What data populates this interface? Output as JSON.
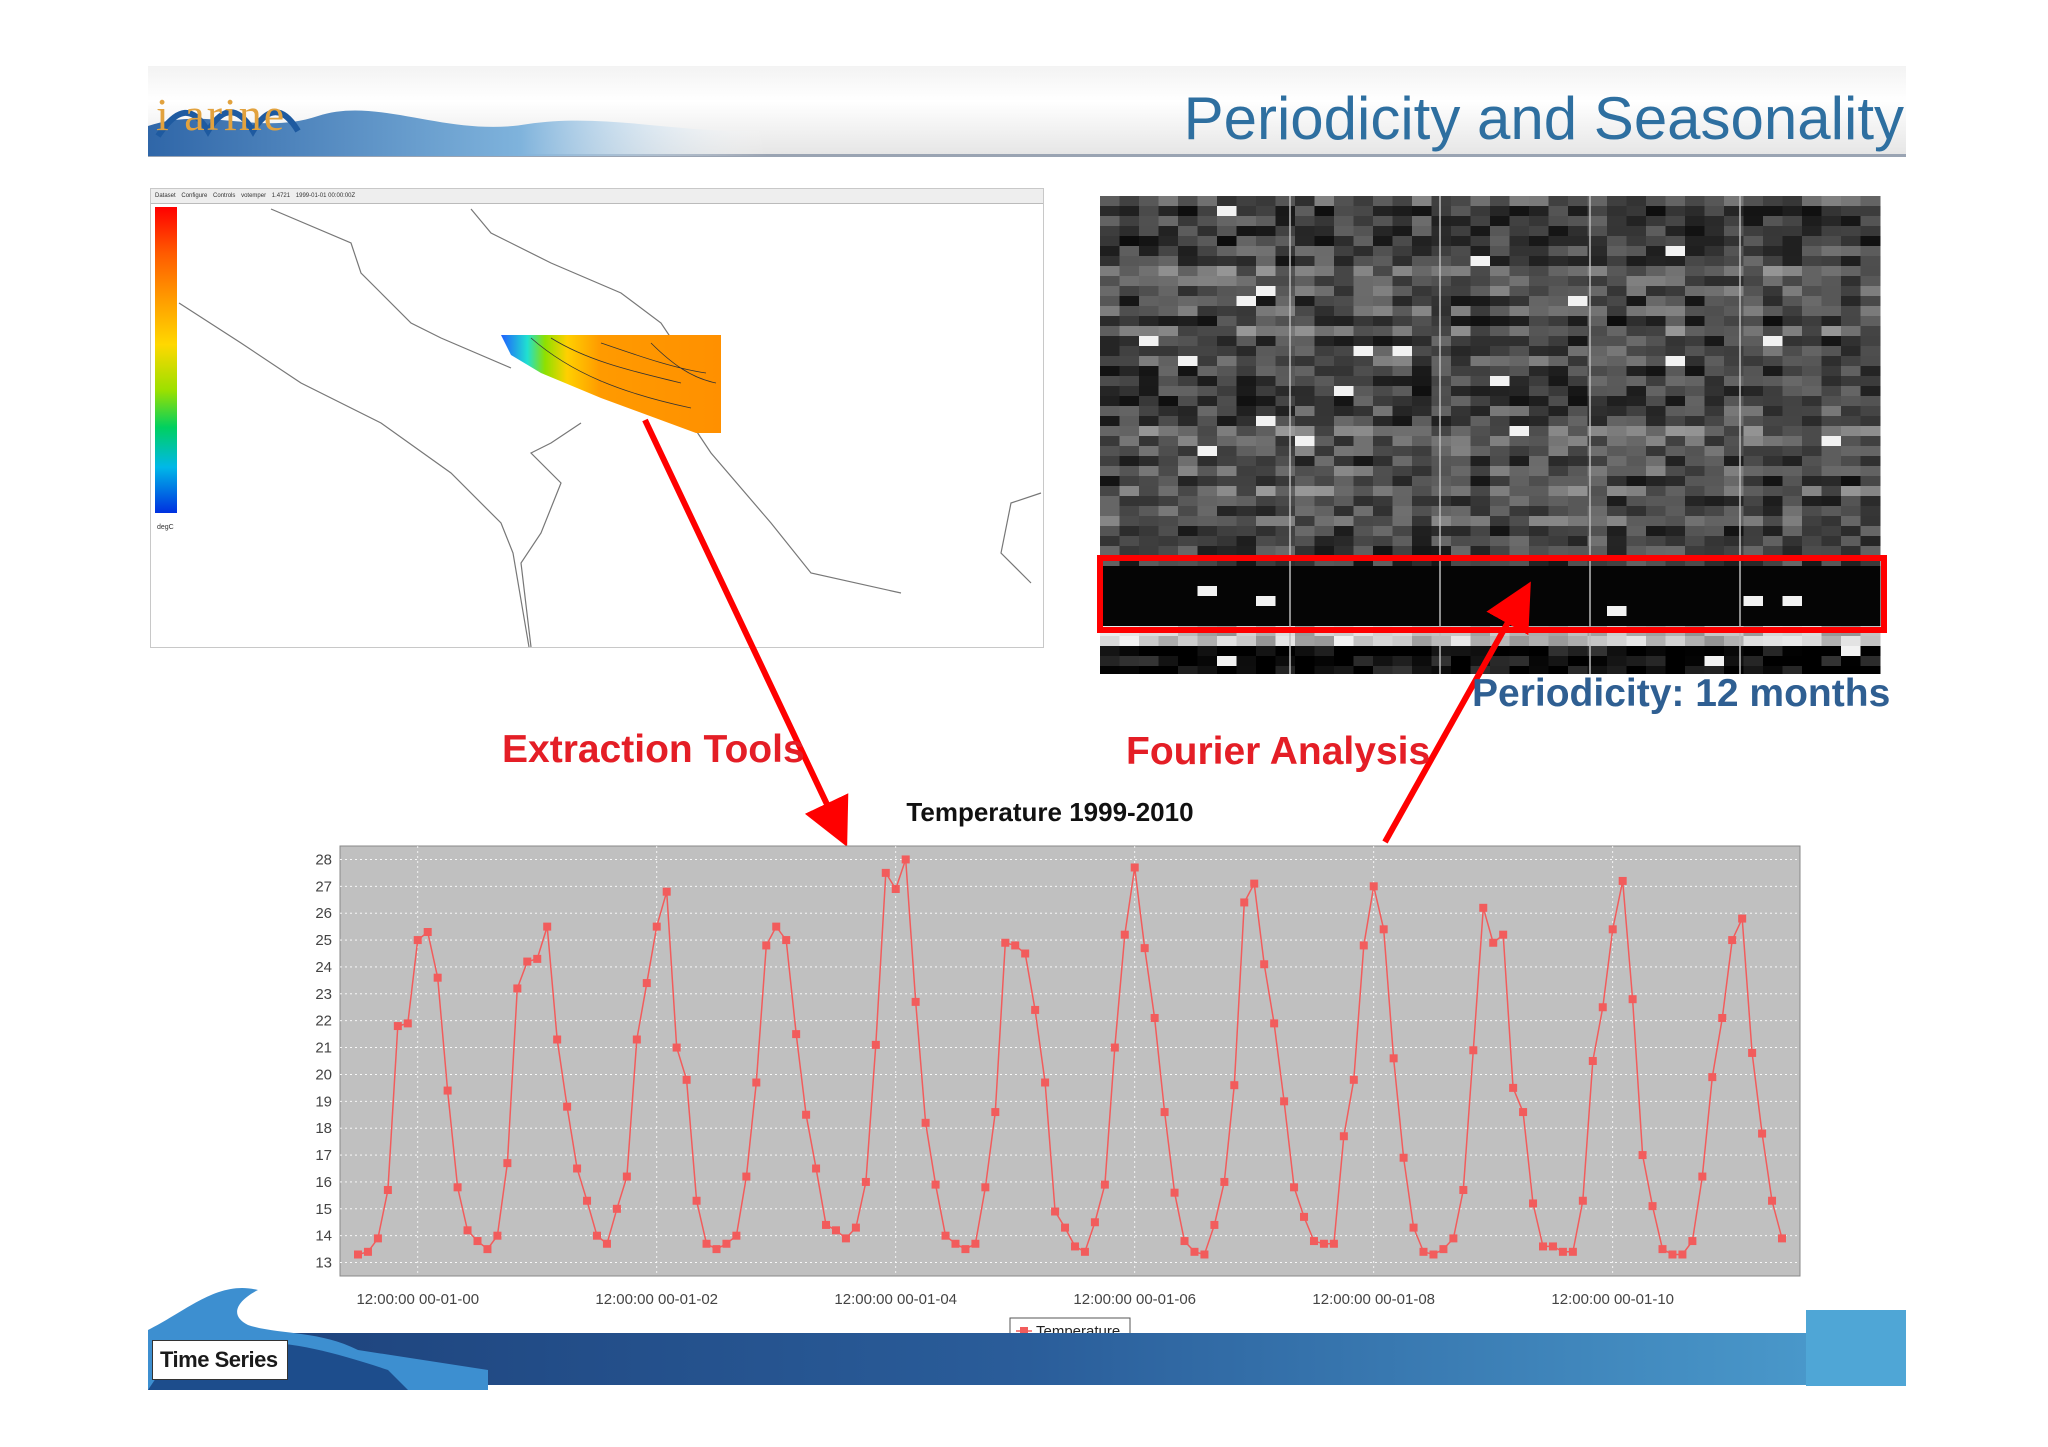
{
  "slide": {
    "title": "Periodicity and Seasonality",
    "logo_text": "i  arine",
    "footer_label": "Time Series"
  },
  "labels": {
    "extraction": "Extraction Tools",
    "fourier": "Fourier Analysis",
    "periodicity": "Periodicity: 12 months"
  },
  "colors": {
    "title": "#2e6fa0",
    "red_label": "#e41e26",
    "periodicity_label": "#2f5f92",
    "series": "#f25c5c",
    "plot_bg": "#c0c0c0"
  },
  "map_panel": {
    "toolbar_items": [
      "Dataset",
      "Configure",
      "Controls",
      "votemper",
      "1.4721",
      "1999-01-01 00:00:00Z"
    ],
    "colorbar_unit": "degC"
  },
  "chart_data": {
    "type": "line",
    "title": "Temperature 1999-2010",
    "xlabel": "",
    "ylabel": "",
    "x_ticks": [
      "12:00:00 00-01-00",
      "12:00:00 00-01-02",
      "12:00:00 00-01-04",
      "12:00:00 00-01-06",
      "12:00:00 00-01-08",
      "12:00:00 00-01-10"
    ],
    "y_ticks": [
      13,
      14,
      15,
      16,
      17,
      18,
      19,
      20,
      21,
      22,
      23,
      24,
      25,
      26,
      27,
      28
    ],
    "ylim": [
      12.5,
      28.5
    ],
    "grid": true,
    "legend": "bottom-center",
    "series": [
      {
        "name": "Temperature",
        "values": [
          13.3,
          13.4,
          13.9,
          15.7,
          21.8,
          21.9,
          25.0,
          25.3,
          23.6,
          19.4,
          15.8,
          14.2,
          13.8,
          13.5,
          14.0,
          16.7,
          23.2,
          24.2,
          24.3,
          25.5,
          21.3,
          18.8,
          16.5,
          15.3,
          14.0,
          13.7,
          15.0,
          16.2,
          21.3,
          23.4,
          25.5,
          26.8,
          21.0,
          19.8,
          15.3,
          13.7,
          13.5,
          13.7,
          14.0,
          16.2,
          19.7,
          24.8,
          25.5,
          25.0,
          21.5,
          18.5,
          16.5,
          14.4,
          14.2,
          13.9,
          14.3,
          16.0,
          21.1,
          27.5,
          26.9,
          28.0,
          22.7,
          18.2,
          15.9,
          14.0,
          13.7,
          13.5,
          13.7,
          15.8,
          18.6,
          24.9,
          24.8,
          24.5,
          22.4,
          19.7,
          14.9,
          14.3,
          13.6,
          13.4,
          14.5,
          15.9,
          21.0,
          25.2,
          27.7,
          24.7,
          22.1,
          18.6,
          15.6,
          13.8,
          13.4,
          13.3,
          14.4,
          16.0,
          19.6,
          26.4,
          27.1,
          24.1,
          21.9,
          19.0,
          15.8,
          14.7,
          13.8,
          13.7,
          13.7,
          17.7,
          19.8,
          24.8,
          27.0,
          25.4,
          20.6,
          16.9,
          14.3,
          13.4,
          13.3,
          13.5,
          13.9,
          15.7,
          20.9,
          26.2,
          24.9,
          25.2,
          19.5,
          18.6,
          15.2,
          13.6,
          13.6,
          13.4,
          13.4,
          15.3,
          20.5,
          22.5,
          25.4,
          27.2,
          22.8,
          17.0,
          15.1,
          13.5,
          13.3,
          13.3,
          13.8,
          16.2,
          19.9,
          22.1,
          25.0,
          25.8,
          20.8,
          17.8,
          15.3,
          13.9
        ]
      }
    ]
  }
}
